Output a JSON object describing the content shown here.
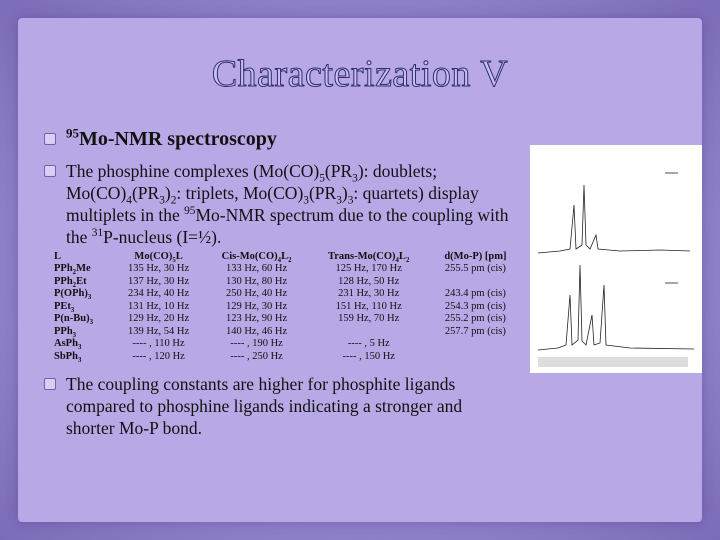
{
  "title": "Characterization V",
  "bullets": [
    [
      {
        "sup": "95"
      },
      "Mo-NMR spectroscopy"
    ],
    [
      "The phosphine complexes (Mo(CO)",
      {
        "sub": "5"
      },
      "(PR",
      {
        "sub": "3"
      },
      "): doublets; Mo(CO)",
      {
        "sub": "4"
      },
      "(PR",
      {
        "sub": "3"
      },
      ")",
      {
        "sub": "2"
      },
      ": triplets, Mo(CO)",
      {
        "sub": "3"
      },
      "(PR",
      {
        "sub": "3"
      },
      ")",
      {
        "sub": "3"
      },
      ": quartets) display multiplets in the ",
      {
        "sup": "95"
      },
      "Mo-NMR spectrum due to the coupling with the ",
      {
        "sup": "31"
      },
      "P-nucleus (I=½)."
    ],
    [
      "The coupling constants are higher for phosphite ligands compared to phosphine ligands indicating a stronger and shorter Mo-P bond."
    ]
  ],
  "table": {
    "header": [
      "L",
      [
        "Mo(CO)",
        {
          "sub": "5"
        },
        "L"
      ],
      [
        "Cis-Mo(CO)",
        {
          "sub": "4"
        },
        "L",
        {
          "sub": "2"
        }
      ],
      [
        "Trans-Mo(CO)",
        {
          "sub": "4"
        },
        "L",
        {
          "sub": "2"
        }
      ],
      "d(Mo-P) [pm]"
    ],
    "rows": [
      [
        [
          "PPh",
          {
            "sub": "2"
          },
          "Me"
        ],
        "135 Hz, 30 Hz",
        "133 Hz, 60 Hz",
        "125 Hz, 170 Hz",
        "255.5 pm (cis)"
      ],
      [
        [
          "PPh",
          {
            "sub": "2"
          },
          "Et"
        ],
        "137 Hz, 30 Hz",
        "130 Hz, 80 Hz",
        "128 Hz, 50 Hz",
        null
      ],
      [
        [
          "P(OPh)",
          {
            "sub": "3"
          }
        ],
        "234 Hz, 40 Hz",
        "250 Hz, 40 Hz",
        "231 Hz, 30 Hz",
        "243.4 pm (cis)"
      ],
      [
        [
          "PEt",
          {
            "sub": "3"
          }
        ],
        "131 Hz, 10 Hz",
        "129 Hz, 30 Hz",
        "151 Hz, 110 Hz",
        "254.3 pm (cis)"
      ],
      [
        [
          "P(n-Bu)",
          {
            "sub": "3"
          }
        ],
        "129 Hz, 20 Hz",
        "123 Hz, 90 Hz",
        "159 Hz, 70 Hz",
        "255.2 pm (cis)"
      ],
      [
        [
          "PPh",
          {
            "sub": "3"
          }
        ],
        "139 Hz, 54 Hz",
        "140 Hz, 46 Hz",
        null,
        "257.7 pm (cis)"
      ],
      [
        [
          "AsPh",
          {
            "sub": "3"
          }
        ],
        "---- , 110 Hz",
        "---- , 190 Hz",
        "---- , 5 Hz",
        null
      ],
      [
        [
          "SbPh",
          {
            "sub": "3"
          }
        ],
        "---- , 120 Hz",
        "---- , 250 Hz",
        "---- , 150 Hz",
        null
      ]
    ]
  }
}
